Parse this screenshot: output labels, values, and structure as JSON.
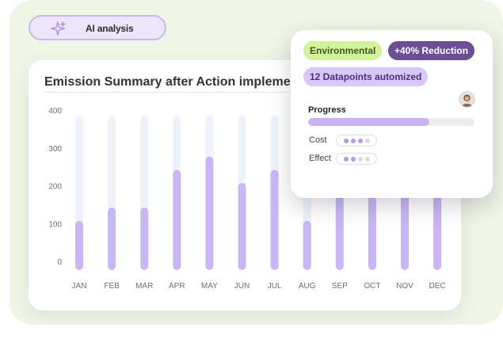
{
  "ai_badge": {
    "label": "AI analysis",
    "icon": "sparkle-icon"
  },
  "chart_data": {
    "type": "bar",
    "title": "Emission Summary after Action implementation",
    "categories": [
      "JAN",
      "FEB",
      "MAR",
      "APR",
      "MAY",
      "JUN",
      "JUL",
      "AUG",
      "SEP",
      "OCT",
      "NOV",
      "DEC"
    ],
    "values": [
      130,
      165,
      165,
      265,
      300,
      230,
      265,
      130,
      325,
      325,
      325,
      325
    ],
    "y_ticks": [
      "400",
      "300",
      "200",
      "100",
      "0"
    ],
    "ylim": [
      0,
      400
    ],
    "xlabel": "",
    "ylabel": "",
    "grid": false,
    "bar_color": "#c9b6f3",
    "track_color": "#eef3fb"
  },
  "detail_card": {
    "tags": {
      "environmental": "Environmental",
      "reduction": "+40% Reduction",
      "automized": "12 Datapoints automized"
    },
    "progress": {
      "label": "Progress",
      "value": 0.73
    },
    "metrics": [
      {
        "label": "Cost",
        "level": 3,
        "max": 4
      },
      {
        "label": "Effect",
        "level": 2,
        "max": 4
      }
    ]
  },
  "colors": {
    "accent": "#c8b2f4",
    "dot_on": "#b79aef",
    "dot_off": "#dcdce0"
  }
}
